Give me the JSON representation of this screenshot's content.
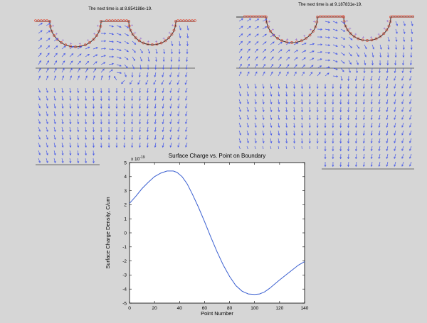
{
  "field_panels": [
    {
      "title": "The next time is at 8.854188e-19."
    },
    {
      "title": "The next time is at 9.187831e-19."
    }
  ],
  "colors": {
    "arrow": "#4a5ce8",
    "boundary_marker": "#e0402a",
    "plus_marker": "#8a5ad0",
    "line": "#3a5fd0",
    "boundary_line": "#333333"
  },
  "icons": [
    "field-arrow-icon",
    "circle-marker-icon",
    "plus-marker-icon"
  ],
  "chart_data": {
    "type": "line",
    "title": "Surface Charge vs. Point on Boundary",
    "xlabel": "Point Number",
    "ylabel": "Surface Charge Density, C/um",
    "y_exponent_label": "x 10",
    "y_exponent": "-19",
    "xlim": [
      0,
      140
    ],
    "ylim": [
      -5,
      5
    ],
    "xticks": [
      0,
      20,
      40,
      60,
      80,
      100,
      120,
      140
    ],
    "yticks": [
      -5,
      -4,
      -3,
      -2,
      -1,
      0,
      1,
      2,
      3,
      4,
      5
    ],
    "grid": false,
    "series": [
      {
        "x": [
          0,
          5,
          10,
          15,
          20,
          25,
          30,
          35,
          38,
          42,
          46,
          50,
          55,
          60,
          65,
          70,
          75,
          80,
          85,
          90,
          95,
          100,
          104,
          108,
          112,
          116,
          120,
          125,
          130,
          135,
          140
        ],
        "y": [
          2.1,
          2.6,
          3.15,
          3.6,
          4.0,
          4.25,
          4.4,
          4.4,
          4.3,
          4.0,
          3.5,
          2.8,
          1.85,
          0.8,
          -0.3,
          -1.35,
          -2.3,
          -3.1,
          -3.75,
          -4.15,
          -4.35,
          -4.38,
          -4.35,
          -4.2,
          -3.95,
          -3.65,
          -3.35,
          -3.0,
          -2.65,
          -2.3,
          -2.05
        ]
      }
    ]
  }
}
